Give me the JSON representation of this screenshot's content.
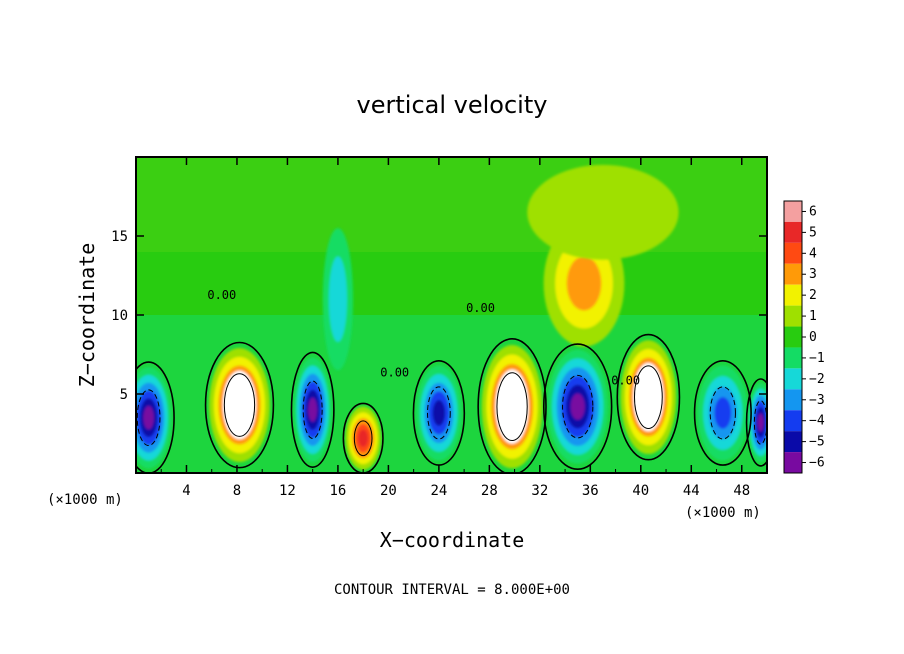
{
  "chart_data": {
    "type": "heatmap",
    "title": "vertical velocity",
    "xlabel": "X−coordinate",
    "ylabel": "Z−coordinate",
    "x_unit_label": "(×1000 m)",
    "xlim": [
      0,
      50
    ],
    "ylim": [
      0,
      20
    ],
    "x_ticks": [
      4,
      8,
      12,
      16,
      20,
      24,
      28,
      32,
      36,
      40,
      44,
      48
    ],
    "y_ticks": [
      5,
      10,
      15
    ],
    "footnote": "CONTOUR INTERVAL = 8.000E+00",
    "colorbar": {
      "levels": [
        6,
        5,
        4,
        3,
        2,
        1,
        0,
        -1,
        -2,
        -3,
        -4,
        -5,
        -6
      ],
      "labels": [
        "6",
        "5",
        "4",
        "3",
        "2",
        "1",
        "0",
        "−1",
        "−2",
        "−3",
        "−4",
        "−5",
        "−6"
      ],
      "colors": [
        "#f4a0a0",
        "#e82828",
        "#ff4a12",
        "#ff9a08",
        "#f2f200",
        "#9fe000",
        "#28cc10",
        "#14dc64",
        "#16d8d8",
        "#1496f0",
        "#143cf0",
        "#0a0aa8",
        "#780aa0"
      ]
    },
    "background_value": 0,
    "cells": [
      {
        "x": 1.0,
        "z": 3.5,
        "rx": 1.8,
        "rz": 3.2,
        "w": -6
      },
      {
        "x": 8.2,
        "z": 4.3,
        "rx": 2.4,
        "rz": 3.6,
        "w": 7
      },
      {
        "x": 14.0,
        "z": 4.0,
        "rx": 1.5,
        "rz": 3.3,
        "w": -6
      },
      {
        "x": 18.0,
        "z": 2.2,
        "rx": 1.4,
        "rz": 2.0,
        "w": 5
      },
      {
        "x": 24.0,
        "z": 3.8,
        "rx": 1.8,
        "rz": 3.0,
        "w": -5
      },
      {
        "x": 29.8,
        "z": 4.2,
        "rx": 2.4,
        "rz": 3.9,
        "w": 7
      },
      {
        "x": 35.0,
        "z": 4.2,
        "rx": 2.4,
        "rz": 3.6,
        "w": -6
      },
      {
        "x": 40.6,
        "z": 4.8,
        "rx": 2.2,
        "rz": 3.6,
        "w": 7
      },
      {
        "x": 46.5,
        "z": 3.8,
        "rx": 2.0,
        "rz": 3.0,
        "w": -4
      },
      {
        "x": 49.5,
        "z": 3.2,
        "rx": 1.0,
        "rz": 2.5,
        "w": -6
      },
      {
        "x": 35.5,
        "z": 12.0,
        "rx": 3.2,
        "rz": 4.0,
        "w": 3
      },
      {
        "x": 37.0,
        "z": 16.5,
        "rx": 6.0,
        "rz": 3.0,
        "w": 1
      },
      {
        "x": 16.0,
        "z": 11.0,
        "rx": 1.2,
        "rz": 4.5,
        "w": -2
      }
    ],
    "contours": [
      {
        "level": "0.00",
        "x": 6.8,
        "z": 11.0
      },
      {
        "level": "0.00",
        "x": 20.5,
        "z": 6.1
      },
      {
        "level": "0.00",
        "x": 27.3,
        "z": 10.2
      },
      {
        "level": "0.00",
        "x": 38.8,
        "z": 5.6
      }
    ]
  }
}
